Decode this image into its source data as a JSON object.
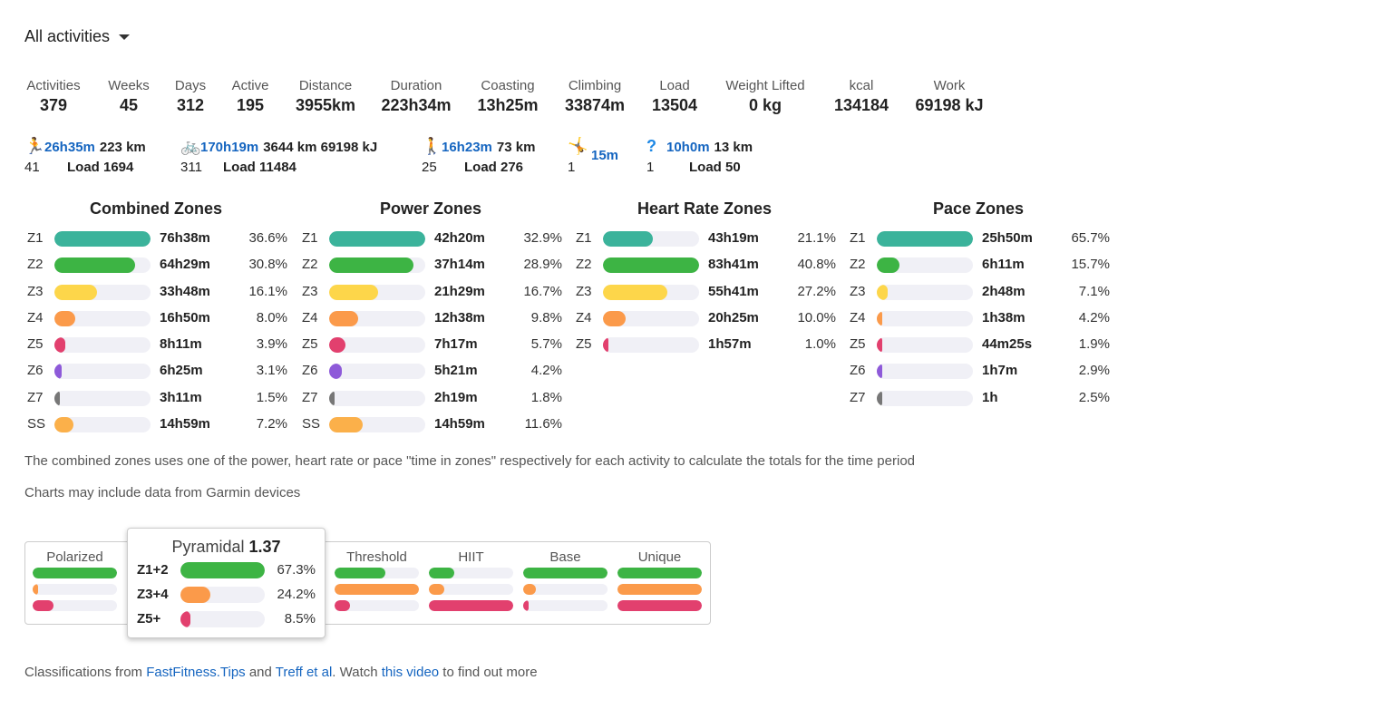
{
  "filter": {
    "label": "All activities"
  },
  "stats": [
    {
      "label": "Activities",
      "value": "379"
    },
    {
      "label": "Weeks",
      "value": "45"
    },
    {
      "label": "Days",
      "value": "312"
    },
    {
      "label": "Active",
      "value": "195"
    },
    {
      "label": "Distance",
      "value": "3955km"
    },
    {
      "label": "Duration",
      "value": "223h34m"
    },
    {
      "label": "Coasting",
      "value": "13h25m"
    },
    {
      "label": "Climbing",
      "value": "33874m"
    },
    {
      "label": "Load",
      "value": "13504"
    },
    {
      "label": "Weight Lifted",
      "value": "0 kg"
    },
    {
      "label": "kcal",
      "value": "134184"
    },
    {
      "label": "Work",
      "value": "69198 kJ"
    }
  ],
  "sports": [
    {
      "icon": "run-icon",
      "glyph": "🏃",
      "time": "26h35m",
      "extra": "223 km",
      "count": "41",
      "load": "Load 1694"
    },
    {
      "icon": "bike-icon",
      "glyph": "🚲",
      "time": "170h19m",
      "extra": "3644 km 69198 kJ",
      "count": "311",
      "load": "Load 11484"
    },
    {
      "icon": "walk-icon",
      "glyph": "🚶",
      "time": "16h23m",
      "extra": "73 km",
      "count": "25",
      "load": "Load 276"
    },
    {
      "icon": "workout-icon",
      "glyph": "🤸",
      "time": "15m",
      "extra": "",
      "count": "1",
      "load": ""
    },
    {
      "icon": "unknown-icon",
      "glyph": "?",
      "time": "10h0m",
      "extra": "13 km",
      "count": "1",
      "load": "Load 50"
    }
  ],
  "colors": {
    "Z1": "#3bb39b",
    "Z2": "#3db444",
    "Z3": "#fdd64a",
    "Z4": "#fb9a4a",
    "Z5": "#e2406e",
    "Z6": "#8e5ad9",
    "Z7": "#777777",
    "SS": "#fbb04a"
  },
  "zone_panels": [
    {
      "title": "Combined Zones",
      "rows": [
        [
          "Z1",
          "76h38m",
          "36.6%",
          1
        ],
        [
          "Z2",
          "64h29m",
          "30.8%",
          0.84
        ],
        [
          "Z3",
          "33h48m",
          "16.1%",
          0.44
        ],
        [
          "Z4",
          "16h50m",
          "8.0%",
          0.22
        ],
        [
          "Z5",
          "8h11m",
          "3.9%",
          0.11
        ],
        [
          "Z6",
          "6h25m",
          "3.1%",
          0.08
        ],
        [
          "Z7",
          "3h11m",
          "1.5%",
          0.04
        ],
        [
          "SS",
          "14h59m",
          "7.2%",
          0.2
        ]
      ]
    },
    {
      "title": "Power Zones",
      "rows": [
        [
          "Z1",
          "42h20m",
          "32.9%",
          1
        ],
        [
          "Z2",
          "37h14m",
          "28.9%",
          0.88
        ],
        [
          "Z3",
          "21h29m",
          "16.7%",
          0.51
        ],
        [
          "Z4",
          "12h38m",
          "9.8%",
          0.3
        ],
        [
          "Z5",
          "7h17m",
          "5.7%",
          0.17
        ],
        [
          "Z6",
          "5h21m",
          "4.2%",
          0.13
        ],
        [
          "Z7",
          "2h19m",
          "1.8%",
          0.05
        ],
        [
          "SS",
          "14h59m",
          "11.6%",
          0.35
        ]
      ]
    },
    {
      "title": "Heart Rate Zones",
      "rows": [
        [
          "Z1",
          "43h19m",
          "21.1%",
          0.52
        ],
        [
          "Z2",
          "83h41m",
          "40.8%",
          1
        ],
        [
          "Z3",
          "55h41m",
          "27.2%",
          0.67
        ],
        [
          "Z4",
          "20h25m",
          "10.0%",
          0.24
        ],
        [
          "Z5",
          "1h57m",
          "1.0%",
          0.02
        ]
      ]
    },
    {
      "title": "Pace Zones",
      "rows": [
        [
          "Z1",
          "25h50m",
          "65.7%",
          1
        ],
        [
          "Z2",
          "6h11m",
          "15.7%",
          0.24
        ],
        [
          "Z3",
          "2h48m",
          "7.1%",
          0.11
        ],
        [
          "Z4",
          "1h38m",
          "4.2%",
          0.06
        ],
        [
          "Z5",
          "44m25s",
          "1.9%",
          0.03
        ],
        [
          "Z6",
          "1h7m",
          "2.9%",
          0.04
        ],
        [
          "Z7",
          "1h",
          "2.5%",
          0.04
        ]
      ]
    }
  ],
  "notes": [
    "The combined zones uses one of the power, heart rate or pace \"time in zones\" respectively for each activity to calculate the totals for the time period",
    "Charts may include data from Garmin devices"
  ],
  "classifications": [
    {
      "name": "Polarized",
      "fills": [
        1,
        0.06,
        0.25
      ]
    },
    {
      "name": "Pyramidal",
      "fills": [
        1,
        0.36,
        0.12
      ]
    },
    {
      "name": "Threshold",
      "fills": [
        0.6,
        1,
        0.18
      ]
    },
    {
      "name": "HIIT",
      "fills": [
        0.3,
        0.18,
        1
      ]
    },
    {
      "name": "Base",
      "fills": [
        1,
        0.15,
        0.05
      ]
    },
    {
      "name": "Unique",
      "fills": [
        1,
        1,
        1
      ]
    }
  ],
  "class_colors": [
    "#3db444",
    "#fb9a4a",
    "#e2406e"
  ],
  "tooltip": {
    "name": "Pyramidal",
    "score": "1.37",
    "rows": [
      [
        "Z1+2",
        "67.3%",
        1
      ],
      [
        "Z3+4",
        "24.2%",
        0.36
      ],
      [
        "Z5+",
        "8.5%",
        0.12
      ]
    ]
  },
  "footer": {
    "prefix": "Classifications from ",
    "link1": "FastFitness.Tips",
    "mid": " and ",
    "link2": "Treff et al",
    "mid2": ". Watch ",
    "link3": "this video",
    "suffix": " to find out more"
  }
}
